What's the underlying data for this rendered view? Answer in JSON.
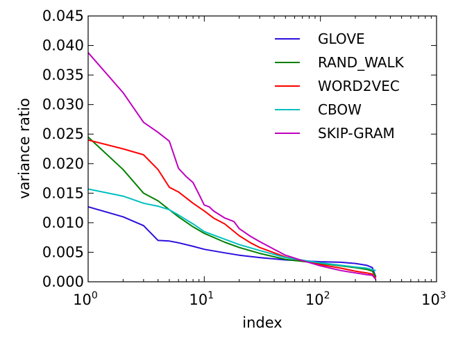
{
  "chart_data": {
    "type": "line",
    "xlabel": "index",
    "ylabel": "variance ratio",
    "xscale": "log",
    "xlim": [
      1,
      1000
    ],
    "ylim": [
      0,
      0.045
    ],
    "yticks": [
      "0.000",
      "0.005",
      "0.010",
      "0.015",
      "0.020",
      "0.025",
      "0.030",
      "0.035",
      "0.040",
      "0.045"
    ],
    "xtick_base": "10",
    "xtick_exponents": [
      "0",
      "1",
      "2",
      "3"
    ],
    "grid": false,
    "legend_position": "top-right",
    "series": [
      {
        "name": "GLOVE",
        "color": "#2b0fdc",
        "x": [
          1,
          2,
          3,
          4,
          5,
          6,
          8,
          10,
          15,
          20,
          30,
          50,
          100,
          150,
          200,
          250,
          280,
          300
        ],
        "y": [
          0.0127,
          0.011,
          0.0095,
          0.007,
          0.0069,
          0.0066,
          0.006,
          0.0055,
          0.0049,
          0.0045,
          0.0041,
          0.0037,
          0.0034,
          0.0033,
          0.0031,
          0.0028,
          0.0024,
          0.0008
        ]
      },
      {
        "name": "RAND_WALK",
        "color": "#008000",
        "x": [
          1,
          2,
          3,
          4,
          5,
          6,
          8,
          10,
          15,
          20,
          30,
          50,
          100,
          150,
          200,
          250,
          280,
          300
        ],
        "y": [
          0.0245,
          0.019,
          0.015,
          0.0137,
          0.0122,
          0.011,
          0.0093,
          0.0082,
          0.0067,
          0.0058,
          0.0048,
          0.0038,
          0.0031,
          0.0027,
          0.0024,
          0.0021,
          0.0018,
          0.0009
        ]
      },
      {
        "name": "WORD2VEC",
        "color": "#ff0000",
        "x": [
          1,
          2,
          3,
          4,
          5,
          6,
          8,
          10,
          12,
          15,
          20,
          25,
          30,
          50,
          100,
          150,
          200,
          250,
          280,
          300
        ],
        "y": [
          0.024,
          0.0225,
          0.0215,
          0.019,
          0.016,
          0.0152,
          0.0133,
          0.012,
          0.0108,
          0.0098,
          0.0078,
          0.0066,
          0.0058,
          0.0042,
          0.0029,
          0.0023,
          0.0018,
          0.0015,
          0.0013,
          0.0006
        ]
      },
      {
        "name": "CBOW",
        "color": "#00bfbf",
        "x": [
          1,
          2,
          3,
          4,
          5,
          6,
          8,
          10,
          15,
          20,
          30,
          50,
          100,
          150,
          200,
          250,
          300
        ],
        "y": [
          0.0157,
          0.0145,
          0.0133,
          0.0128,
          0.0122,
          0.0113,
          0.0098,
          0.0085,
          0.0072,
          0.0063,
          0.0053,
          0.0041,
          0.0032,
          0.0028,
          0.0025,
          0.0023,
          0.0019
        ]
      },
      {
        "name": "SKIP-GRAM",
        "color": "#bf00bf",
        "x": [
          1,
          2,
          3,
          4,
          5,
          6,
          7,
          8,
          9,
          10,
          11,
          12,
          15,
          18,
          20,
          25,
          30,
          40,
          50,
          70,
          100,
          150,
          200,
          250,
          280,
          300
        ],
        "y": [
          0.0388,
          0.032,
          0.027,
          0.0253,
          0.0238,
          0.0192,
          0.0178,
          0.0168,
          0.0148,
          0.013,
          0.0127,
          0.012,
          0.0108,
          0.0102,
          0.009,
          0.0077,
          0.0068,
          0.0055,
          0.0045,
          0.0036,
          0.0027,
          0.0019,
          0.0015,
          0.0012,
          0.0011,
          0.0004
        ]
      }
    ]
  }
}
